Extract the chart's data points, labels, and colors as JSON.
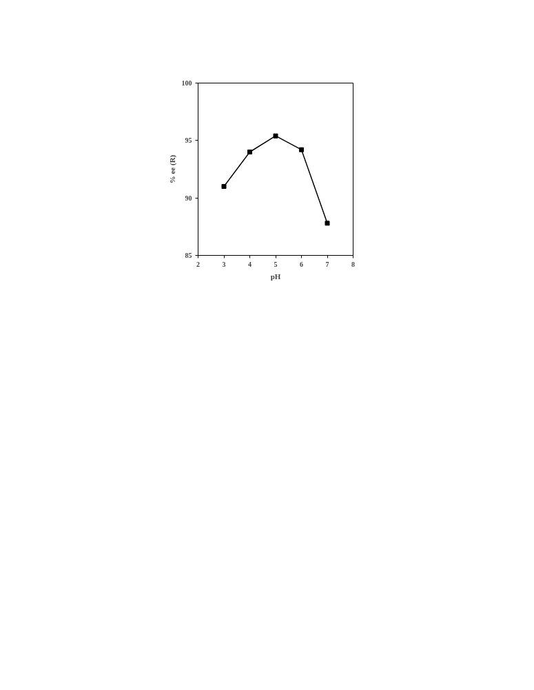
{
  "chart_data": {
    "type": "line",
    "xlabel": "pH",
    "ylabel": "% ee (R)",
    "x": [
      3,
      4,
      5,
      6,
      7
    ],
    "series": [
      {
        "color": "#000000",
        "values": [
          91.0,
          94.0,
          95.4,
          94.2,
          87.8
        ]
      }
    ],
    "xlim": [
      2,
      8
    ],
    "xticks": [
      2,
      3,
      4,
      5,
      6,
      7,
      8
    ],
    "ylim": [
      85,
      100
    ],
    "yticks": [
      85,
      90,
      95,
      100
    ],
    "marker": "square",
    "line_style": "solid",
    "grid": false
  }
}
